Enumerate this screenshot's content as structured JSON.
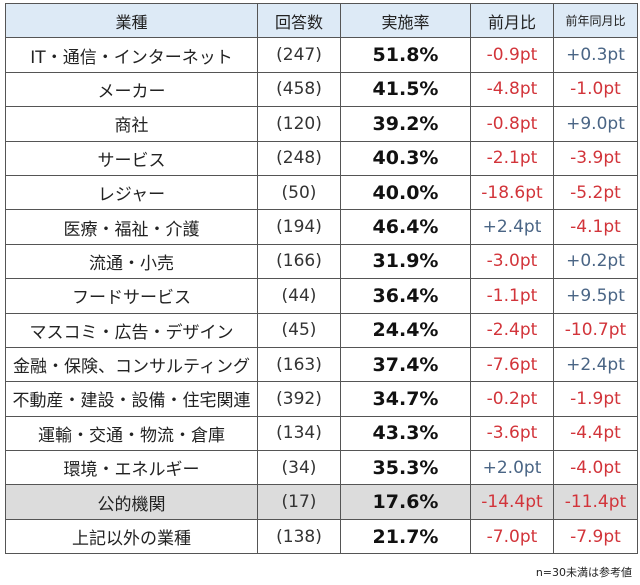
{
  "headers": [
    "業種",
    "回答数",
    "実施率",
    "前月比",
    "前年同月比"
  ],
  "rows": [
    {
      "industry": "IT・通信・インターネット",
      "n": "(247)",
      "rate": "51.8%",
      "mom": "-0.9pt",
      "yoy": "+0.3pt"
    },
    {
      "industry": "メーカー",
      "n": "(458)",
      "rate": "41.5%",
      "mom": "-4.8pt",
      "yoy": "-1.0pt"
    },
    {
      "industry": "商社",
      "n": "(120)",
      "rate": "39.2%",
      "mom": "-0.8pt",
      "yoy": "+9.0pt"
    },
    {
      "industry": "サービス",
      "n": "(248)",
      "rate": "40.3%",
      "mom": "-2.1pt",
      "yoy": "-3.9pt"
    },
    {
      "industry": "レジャー",
      "n": "(50)",
      "rate": "40.0%",
      "mom": "-18.6pt",
      "yoy": "-5.2pt"
    },
    {
      "industry": "医療・福祉・介護",
      "n": "(194)",
      "rate": "46.4%",
      "mom": "+2.4pt",
      "yoy": "-4.1pt"
    },
    {
      "industry": "流通・小売",
      "n": "(166)",
      "rate": "31.9%",
      "mom": "-3.0pt",
      "yoy": "+0.2pt"
    },
    {
      "industry": "フードサービス",
      "n": "(44)",
      "rate": "36.4%",
      "mom": "-1.1pt",
      "yoy": "+9.5pt"
    },
    {
      "industry": "マスコミ・広告・デザイン",
      "n": "(45)",
      "rate": "24.4%",
      "mom": "-2.4pt",
      "yoy": "-10.7pt"
    },
    {
      "industry": "金融・保険、コンサルティング",
      "n": "(163)",
      "rate": "37.4%",
      "mom": "-7.6pt",
      "yoy": "+2.4pt"
    },
    {
      "industry": "不動産・建設・設備・住宅関連",
      "n": "(392)",
      "rate": "34.7%",
      "mom": "-0.2pt",
      "yoy": "-1.9pt"
    },
    {
      "industry": "運輸・交通・物流・倉庫",
      "n": "(134)",
      "rate": "43.3%",
      "mom": "-3.6pt",
      "yoy": "-4.4pt"
    },
    {
      "industry": "環境・エネルギー",
      "n": "(34)",
      "rate": "35.3%",
      "mom": "+2.0pt",
      "yoy": "-4.0pt"
    },
    {
      "industry": "公的機関",
      "n": "(17)",
      "rate": "17.6%",
      "mom": "-14.4pt",
      "yoy": "-11.4pt",
      "highlight": true
    },
    {
      "industry": "上記以外の業種",
      "n": "(138)",
      "rate": "21.7%",
      "mom": "-7.0pt",
      "yoy": "-7.9pt"
    }
  ],
  "note": "n=30未満は参考値",
  "colors": {
    "header_bg": "#ddeaf6",
    "negative": "#d2343a",
    "positive": "#4a6585",
    "highlight_bg": "#dcdcdc"
  }
}
